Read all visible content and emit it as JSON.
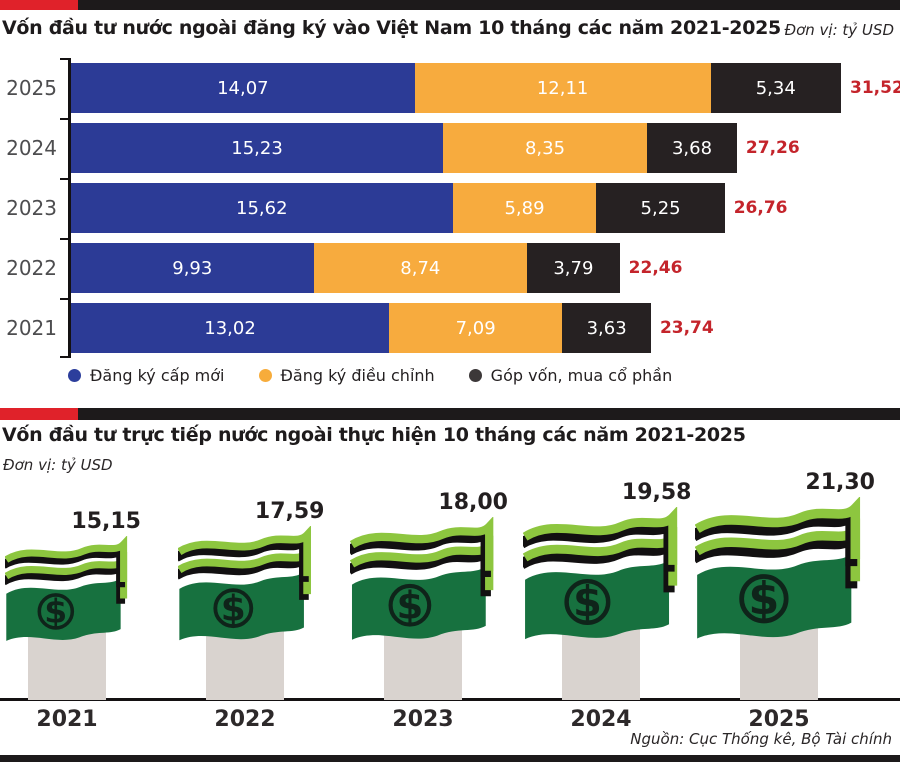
{
  "colors": {
    "accent_red": "#e0222a",
    "divider_black": "#1d1a1b",
    "total_red": "#c4242b",
    "axis": "#141112"
  },
  "header1": {
    "title": "Vốn đầu tư nước ngoài đăng ký vào Việt Nam 10 tháng các năm 2021-2025",
    "unit": "Đơn vị: tỷ USD"
  },
  "header2": {
    "title": "Vốn đầu tư trực tiếp nước ngoài thực hiện 10 tháng các năm 2021-2025",
    "unit": "Đơn vị: tỷ USD"
  },
  "source": "Nguồn: Cục Thống kê, Bộ Tài chính",
  "chart_data": [
    {
      "type": "bar",
      "orientation": "horizontal",
      "stacked": true,
      "title": "Vốn đầu tư nước ngoài đăng ký vào Việt Nam 10 tháng các năm 2021-2025",
      "unit": "tỷ USD",
      "xlim": [
        0,
        31.52
      ],
      "grid": false,
      "legend_position": "bottom",
      "categories": [
        "2025",
        "2024",
        "2023",
        "2022",
        "2021"
      ],
      "series": [
        {
          "name": "Đăng ký cấp mới",
          "color": "#2c3b96",
          "dot_color": "#2c3e9c",
          "values": [
            14.07,
            15.23,
            15.62,
            9.93,
            13.02
          ],
          "labels": [
            "14,07",
            "15,23",
            "15,62",
            "9,93",
            "13,02"
          ]
        },
        {
          "name": "Đăng ký điều chỉnh",
          "color": "#f7ab3e",
          "dot_color": "#f7ac3b",
          "values": [
            12.11,
            8.35,
            5.89,
            8.74,
            7.09
          ],
          "labels": [
            "12,11",
            "8,35",
            "5,89",
            "8,74",
            "7,09"
          ]
        },
        {
          "name": "Góp vốn, mua cổ phần",
          "color": "#262122",
          "dot_color": "#3c3839",
          "values": [
            5.34,
            3.68,
            5.25,
            3.79,
            3.63
          ],
          "labels": [
            "5,34",
            "3,68",
            "5,25",
            "3,79",
            "3,63"
          ]
        }
      ],
      "totals": [
        31.52,
        27.26,
        26.76,
        22.46,
        23.74
      ],
      "total_labels": [
        "31,52",
        "27,26",
        "26,76",
        "22,46",
        "23,74"
      ]
    },
    {
      "type": "pictorial-bar",
      "icon": "money-stack",
      "title": "Vốn đầu tư trực tiếp nước ngoài thực hiện 10 tháng các năm 2021-2025",
      "unit": "tỷ USD",
      "categories": [
        "2021",
        "2022",
        "2023",
        "2024",
        "2025"
      ],
      "values": [
        15.15,
        17.59,
        18.0,
        19.58,
        21.3
      ],
      "value_labels": [
        "15,15",
        "17,59",
        "18,00",
        "19,58",
        "21,30"
      ],
      "colors": {
        "bill": "#17713f",
        "strips": "#8dc63f",
        "emblem": "#0f241a",
        "shadow": "#121011",
        "pedestal": "#d9d3cf"
      }
    }
  ]
}
